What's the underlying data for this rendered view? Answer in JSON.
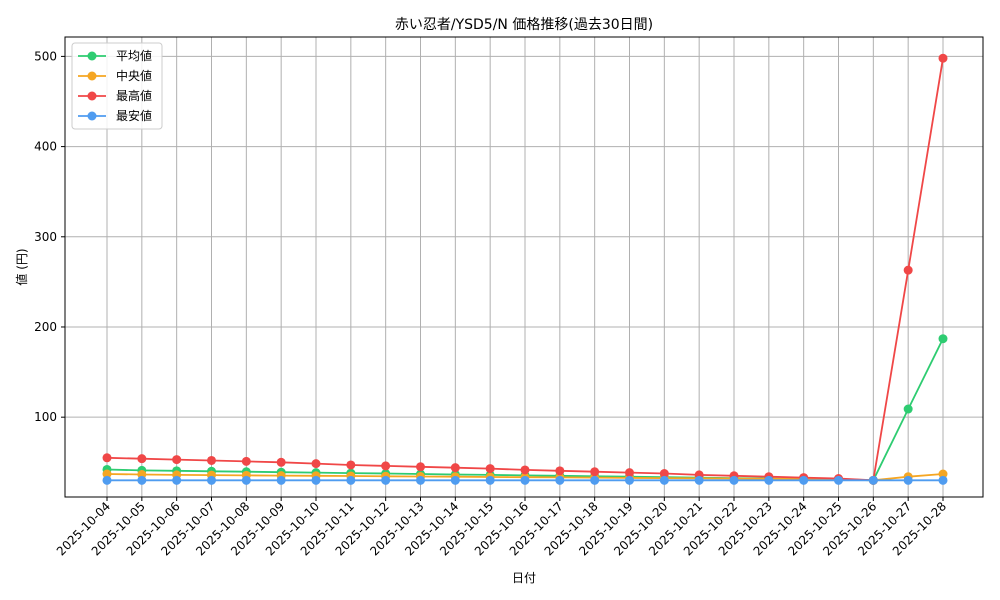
{
  "chart_data": {
    "type": "line",
    "title": "赤い忍者/YSD5/N 価格推移(過去30日間)",
    "xlabel": "日付",
    "ylabel": "値 (円)",
    "ylim": [
      11.5,
      521.5
    ],
    "yticks": [
      100,
      200,
      300,
      400,
      500
    ],
    "grid": true,
    "legend_position": "top-left",
    "x": [
      "2025-10-04",
      "2025-10-05",
      "2025-10-06",
      "2025-10-07",
      "2025-10-08",
      "2025-10-09",
      "2025-10-10",
      "2025-10-11",
      "2025-10-12",
      "2025-10-13",
      "2025-10-14",
      "2025-10-15",
      "2025-10-16",
      "2025-10-17",
      "2025-10-18",
      "2025-10-19",
      "2025-10-20",
      "2025-10-21",
      "2025-10-22",
      "2025-10-23",
      "2025-10-24",
      "2025-10-25",
      "2025-10-26",
      "2025-10-27",
      "2025-10-28"
    ],
    "series": [
      {
        "name": "平均値",
        "color": "#2ecc71",
        "values": [
          42,
          41,
          40.5,
          40,
          39.5,
          39,
          38.5,
          38,
          37.5,
          37,
          36.5,
          36,
          35.5,
          35,
          34.5,
          34,
          33.5,
          33,
          32.5,
          32,
          31.5,
          31,
          30,
          109,
          187
        ]
      },
      {
        "name": "中央値",
        "color": "#f5a623",
        "values": [
          37,
          36.5,
          36,
          35.8,
          35.5,
          35.2,
          35,
          34.8,
          34.5,
          34.2,
          34,
          33.7,
          33.5,
          33.2,
          33,
          32.7,
          32.5,
          32.2,
          32,
          31.7,
          31.5,
          31.2,
          30,
          34,
          37
        ]
      },
      {
        "name": "最高値",
        "color": "#f04747",
        "values": [
          55,
          54,
          53,
          52,
          51,
          50,
          48.5,
          47,
          46,
          45,
          44,
          43,
          41.5,
          40.5,
          39.5,
          38.5,
          37.5,
          36,
          35,
          34,
          33,
          32,
          30,
          263,
          498
        ]
      },
      {
        "name": "最安値",
        "color": "#4f9cf0",
        "values": [
          30,
          30,
          30,
          30,
          30,
          30,
          30,
          30,
          30,
          30,
          30,
          30,
          30,
          30,
          30,
          30,
          30,
          30,
          30,
          30,
          30,
          30,
          30,
          30,
          30
        ]
      }
    ]
  }
}
